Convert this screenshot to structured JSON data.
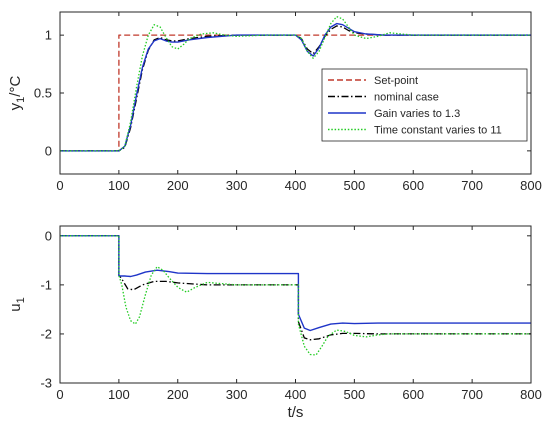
{
  "chart_data": [
    {
      "type": "line",
      "ylabel": "y",
      "ylabel_sub": "1",
      "ylabel_unit": "/°C",
      "xlim": [
        0,
        800
      ],
      "ylim": [
        -0.2,
        1.2
      ],
      "x_ticks": [
        "0",
        "100",
        "200",
        "300",
        "400",
        "500",
        "600",
        "700",
        "800"
      ],
      "y_ticks": [
        "0",
        "0.5",
        "1"
      ],
      "y_tick_values": [
        0,
        0.5,
        1
      ],
      "grid": false,
      "legend_position": "center-right",
      "series": [
        {
          "name": "Set-point",
          "color": "#c0392b",
          "dash": "dashed",
          "x": [
            0,
            100,
            100,
            800
          ],
          "y": [
            0,
            0,
            1,
            1
          ]
        },
        {
          "name": "nominal case",
          "color": "#000000",
          "dash": "dash-dot",
          "x": [
            0,
            100,
            110,
            120,
            130,
            140,
            150,
            160,
            170,
            180,
            190,
            200,
            220,
            250,
            300,
            350,
            400,
            410,
            420,
            430,
            440,
            450,
            460,
            470,
            480,
            490,
            500,
            520,
            550,
            600,
            700,
            800
          ],
          "y": [
            0,
            0,
            0.03,
            0.2,
            0.45,
            0.7,
            0.87,
            0.96,
            0.98,
            0.96,
            0.95,
            0.95,
            0.97,
            0.99,
            1.0,
            1.0,
            1.0,
            0.97,
            0.88,
            0.84,
            0.9,
            0.99,
            1.05,
            1.08,
            1.07,
            1.04,
            1.02,
            1.01,
            1.0,
            1.0,
            1.0,
            1.0
          ]
        },
        {
          "name": "Gain varies to 1.3",
          "color": "#1f35c8",
          "dash": "solid",
          "x": [
            0,
            100,
            110,
            120,
            130,
            140,
            150,
            160,
            170,
            180,
            190,
            200,
            220,
            250,
            300,
            350,
            400,
            410,
            420,
            430,
            440,
            450,
            460,
            470,
            480,
            490,
            500,
            520,
            550,
            600,
            700,
            800
          ],
          "y": [
            0,
            0,
            0.04,
            0.22,
            0.48,
            0.72,
            0.88,
            0.95,
            0.97,
            0.95,
            0.94,
            0.94,
            0.96,
            0.98,
            1.0,
            1.0,
            1.0,
            0.96,
            0.86,
            0.82,
            0.89,
            1.0,
            1.07,
            1.1,
            1.09,
            1.06,
            1.03,
            1.01,
            1.0,
            1.0,
            1.0,
            1.0
          ]
        },
        {
          "name": "Time constant varies to 11",
          "color": "#22cc22",
          "dash": "dotted",
          "x": [
            0,
            100,
            110,
            120,
            130,
            140,
            150,
            160,
            170,
            180,
            190,
            200,
            210,
            220,
            240,
            260,
            280,
            300,
            350,
            400,
            410,
            420,
            430,
            440,
            450,
            460,
            470,
            480,
            490,
            500,
            520,
            540,
            560,
            580,
            600,
            700,
            800
          ],
          "y": [
            0,
            0,
            0.04,
            0.25,
            0.55,
            0.82,
            1.0,
            1.09,
            1.07,
            0.98,
            0.9,
            0.88,
            0.92,
            0.97,
            1.01,
            1.02,
            1.0,
            0.99,
            1.0,
            1.0,
            0.97,
            0.86,
            0.8,
            0.86,
            0.98,
            1.1,
            1.16,
            1.14,
            1.07,
            1.0,
            0.97,
            0.99,
            1.02,
            1.01,
            1.0,
            1.0,
            1.0
          ]
        }
      ]
    },
    {
      "type": "line",
      "ylabel": "u",
      "ylabel_sub": "1",
      "xlabel": "t/s",
      "xlim": [
        0,
        800
      ],
      "ylim": [
        -3,
        0.2
      ],
      "x_ticks": [
        "0",
        "100",
        "200",
        "300",
        "400",
        "500",
        "600",
        "700",
        "800"
      ],
      "y_ticks": [
        "0",
        "-1",
        "-2",
        "-3"
      ],
      "y_tick_values": [
        0,
        -1,
        -2,
        -3
      ],
      "grid": false,
      "series": [
        {
          "name": "nominal case",
          "color": "#000000",
          "dash": "dash-dot",
          "x": [
            0,
            100,
            100,
            105,
            115,
            125,
            140,
            160,
            180,
            200,
            250,
            300,
            350,
            405,
            405,
            415,
            425,
            440,
            460,
            480,
            500,
            540,
            600,
            700,
            800
          ],
          "y": [
            0,
            0,
            -0.8,
            -0.88,
            -1.08,
            -1.1,
            -1.0,
            -0.93,
            -0.93,
            -0.96,
            -1.0,
            -1.0,
            -1.0,
            -1.0,
            -1.75,
            -2.08,
            -2.12,
            -2.1,
            -2.02,
            -1.99,
            -1.99,
            -2.0,
            -2.0,
            -2.0,
            -2.0
          ]
        },
        {
          "name": "Gain varies to 1.3",
          "color": "#1f35c8",
          "dash": "solid",
          "x": [
            0,
            100,
            100,
            110,
            120,
            130,
            145,
            165,
            185,
            200,
            250,
            300,
            350,
            405,
            405,
            415,
            425,
            440,
            460,
            480,
            500,
            540,
            600,
            700,
            800
          ],
          "y": [
            0,
            0,
            -0.82,
            -0.82,
            -0.83,
            -0.8,
            -0.74,
            -0.7,
            -0.73,
            -0.76,
            -0.77,
            -0.77,
            -0.77,
            -0.77,
            -1.6,
            -1.88,
            -1.93,
            -1.87,
            -1.8,
            -1.78,
            -1.79,
            -1.78,
            -1.78,
            -1.78,
            -1.78
          ]
        },
        {
          "name": "Time constant varies to 11",
          "color": "#22cc22",
          "dash": "dotted",
          "x": [
            0,
            100,
            100,
            105,
            112,
            120,
            128,
            135,
            145,
            155,
            165,
            175,
            185,
            200,
            215,
            230,
            250,
            270,
            300,
            350,
            405,
            405,
            415,
            425,
            435,
            445,
            455,
            470,
            485,
            500,
            520,
            540,
            560,
            600,
            700,
            800
          ],
          "y": [
            0,
            0,
            -0.8,
            -1.0,
            -1.45,
            -1.73,
            -1.8,
            -1.65,
            -1.2,
            -0.8,
            -0.63,
            -0.7,
            -0.85,
            -1.05,
            -1.15,
            -1.05,
            -0.95,
            -0.97,
            -1.0,
            -1.0,
            -1.0,
            -1.8,
            -2.25,
            -2.42,
            -2.43,
            -2.25,
            -2.05,
            -1.92,
            -1.95,
            -2.03,
            -2.06,
            -2.02,
            -2.0,
            -2.0,
            -2.0,
            -2.0
          ]
        }
      ]
    }
  ]
}
